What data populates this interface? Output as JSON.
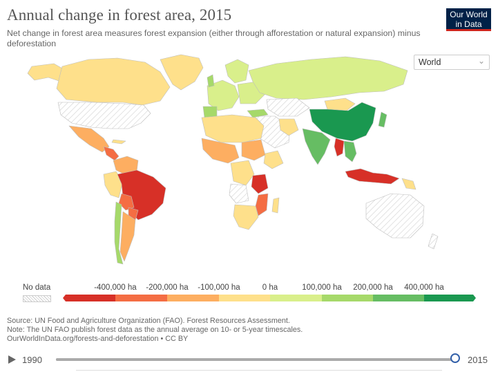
{
  "header": {
    "title": "Annual change in forest area, 2015",
    "subtitle": "Net change in forest area measures forest expansion (either through afforestation or natural expansion) minus deforestation"
  },
  "logo": {
    "line1": "Our World",
    "line2": "in Data"
  },
  "region_select": {
    "value": "World"
  },
  "legend": {
    "no_data_label": "No data",
    "labels": [
      "-400,000 ha",
      "-200,000 ha",
      "-100,000 ha",
      "0 ha",
      "100,000 ha",
      "200,000 ha",
      "400,000 ha"
    ],
    "colors": [
      "#d73027",
      "#f46d43",
      "#fdae61",
      "#fee08b",
      "#d9ef8b",
      "#a6d96a",
      "#66bd63",
      "#1a9850"
    ]
  },
  "regions": [
    {
      "name": "Brazil",
      "color": "#d73027"
    },
    {
      "name": "China",
      "color": "#1a9850"
    },
    {
      "name": "India",
      "color": "#66bd63"
    },
    {
      "name": "Indonesia",
      "color": "#d73027"
    },
    {
      "name": "Russia",
      "color": "#d9ef8b"
    },
    {
      "name": "Canada",
      "color": "#fee08b"
    },
    {
      "name": "Australia",
      "color": "#ffffff"
    },
    {
      "name": "Myanmar",
      "color": "#d73027"
    },
    {
      "name": "Tanzania",
      "color": "#d73027"
    }
  ],
  "footer": {
    "line1": "Source: UN Food and Agriculture Organization (FAO). Forest Resources Assessment.",
    "line2": "Note: The UN FAO publish forest data as the annual average on 10- or 5-year timescales.",
    "line3": "OurWorldInData.org/forests-and-deforestation • CC BY"
  },
  "timeline": {
    "start": "1990",
    "end": "2015"
  }
}
